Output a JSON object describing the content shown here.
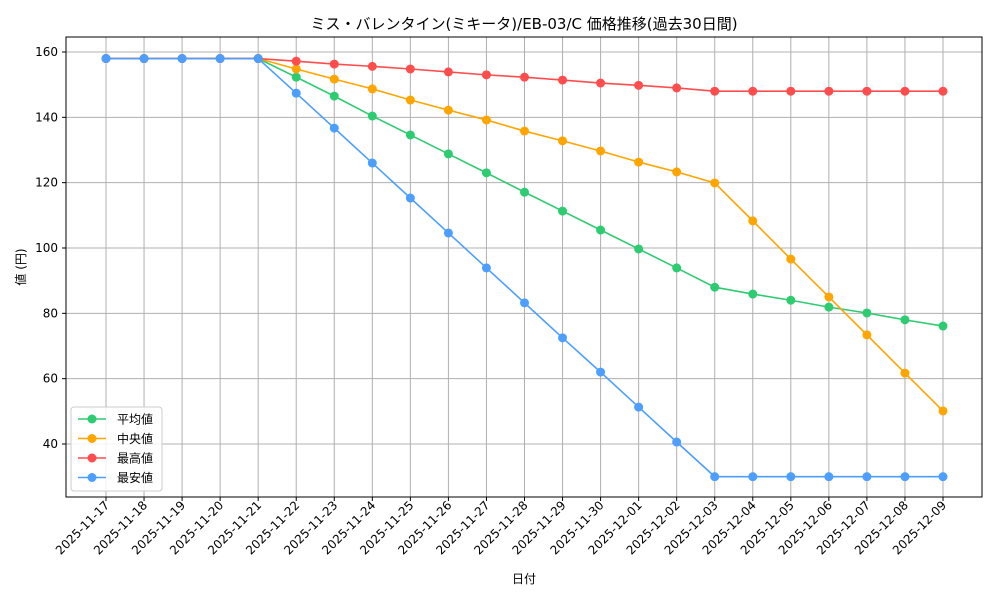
{
  "chart_data": {
    "type": "line",
    "title": "ミス・バレンタイン(ミキータ)/EB-03/C 価格推移(過去30日間)",
    "xlabel": "日付",
    "ylabel": "値 (円)",
    "ylim": [
      23,
      165
    ],
    "yticks": [
      40,
      60,
      80,
      100,
      120,
      140,
      160
    ],
    "grid": true,
    "legend_position": "lower-left",
    "categories": [
      "2025-11-17",
      "2025-11-18",
      "2025-11-19",
      "2025-11-20",
      "2025-11-21",
      "2025-11-22",
      "2025-11-23",
      "2025-11-24",
      "2025-11-25",
      "2025-11-26",
      "2025-11-27",
      "2025-11-28",
      "2025-11-29",
      "2025-11-30",
      "2025-12-01",
      "2025-12-02",
      "2025-12-03",
      "2025-12-04",
      "2025-12-05",
      "2025-12-06",
      "2025-12-07",
      "2025-12-08",
      "2025-12-09"
    ],
    "series": [
      {
        "name": "平均値",
        "color": "#2ecc71",
        "values": [
          158,
          158,
          158,
          158,
          158,
          152.3,
          146.5,
          140.4,
          134.6,
          128.8,
          123,
          117.1,
          111.3,
          105.5,
          99.7,
          93.9,
          88,
          85.9,
          84,
          81.9,
          80.1,
          78,
          76.1
        ]
      },
      {
        "name": "中央値",
        "color": "#ffa500",
        "values": [
          158,
          158,
          158,
          158,
          158,
          154.8,
          151.7,
          148.7,
          145.3,
          142.2,
          139.2,
          135.8,
          132.8,
          129.7,
          126.3,
          123.3,
          119.9,
          108.3,
          96.6,
          85,
          73.4,
          61.7,
          50.1
        ]
      },
      {
        "name": "最高値",
        "color": "#ff4d4d",
        "values": [
          158,
          158,
          158,
          158,
          158,
          157.2,
          156.3,
          155.6,
          154.8,
          153.9,
          153,
          152.3,
          151.4,
          150.5,
          149.8,
          149,
          148,
          148,
          148,
          148,
          148,
          148,
          148
        ]
      },
      {
        "name": "最安値",
        "color": "#4d9fff",
        "values": [
          158,
          158,
          158,
          158,
          158,
          147.4,
          136.7,
          126,
          115.3,
          104.6,
          93.9,
          83.2,
          72.5,
          62,
          51.3,
          40.6,
          30,
          30,
          30,
          30,
          30,
          30,
          30
        ]
      }
    ]
  }
}
